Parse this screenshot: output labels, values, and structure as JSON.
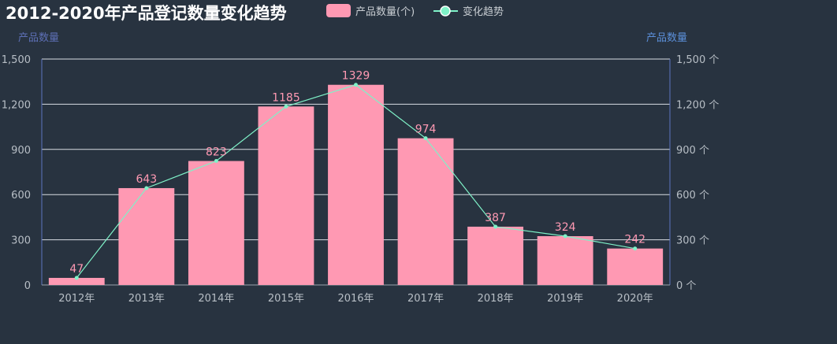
{
  "colors": {
    "background": "#283340",
    "bar": "#ff99b3",
    "line": "#7ff2c8",
    "grid": "#d8dde2",
    "axis_line": "#5b75c0",
    "tick_text": "#b8bfc6",
    "axis_name": "#5b8fd9"
  },
  "legend": {
    "position": "top-center",
    "items": [
      {
        "label": "产品数量(个)",
        "icon": "rounded-rect-icon"
      },
      {
        "label": "变化趋势",
        "icon": "line-circle-icon"
      }
    ]
  },
  "chart_data": {
    "type": "bar",
    "title": "2012-2020年产品登记数量变化趋势",
    "categories": [
      "2012年",
      "2013年",
      "2014年",
      "2015年",
      "2016年",
      "2017年",
      "2018年",
      "2019年",
      "2020年"
    ],
    "series": [
      {
        "name": "产品数量(个)",
        "type": "bar",
        "values": [
          47,
          643,
          823,
          1185,
          1329,
          974,
          387,
          324,
          242
        ]
      },
      {
        "name": "变化趋势",
        "type": "line",
        "values": [
          47,
          643,
          823,
          1185,
          1329,
          974,
          387,
          324,
          242
        ]
      }
    ],
    "ylabel_left": "产品数量",
    "ylabel_right": "产品数量",
    "ylim": [
      0,
      1500
    ],
    "yticks_left": [
      "0",
      "300",
      "600",
      "900",
      "1,200",
      "1,500"
    ],
    "yticks_right": [
      "0 个",
      "300 个",
      "600 个",
      "900 个",
      "1,200 个",
      "1,500 个"
    ],
    "grid": true
  }
}
